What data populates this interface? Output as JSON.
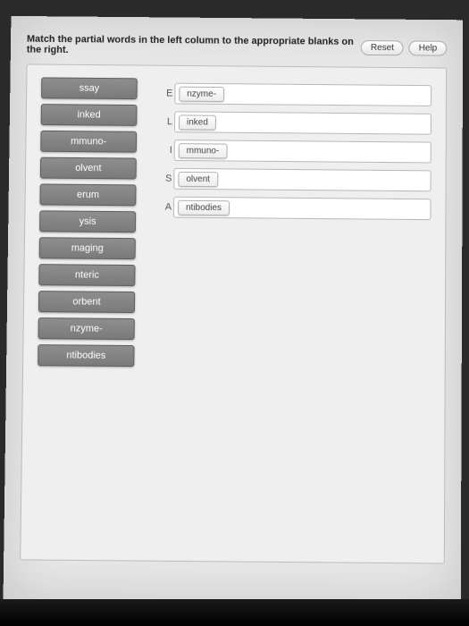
{
  "instruction": "Match the partial words in the left column to the appropriate blanks on the right.",
  "buttons": {
    "reset": "Reset",
    "help": "Help"
  },
  "left_tiles": [
    "ssay",
    "inked",
    "mmuno-",
    "olvent",
    "erum",
    "ysis",
    "maging",
    "nteric",
    "orbent",
    "nzyme-",
    "ntibodies"
  ],
  "right_slots": [
    {
      "prefix": "E",
      "filled": "nzyme-"
    },
    {
      "prefix": "L",
      "filled": "inked"
    },
    {
      "prefix": "I",
      "filled": "mmuno-"
    },
    {
      "prefix": "S",
      "filled": "olvent"
    },
    {
      "prefix": "A",
      "filled": "ntibodies"
    }
  ]
}
